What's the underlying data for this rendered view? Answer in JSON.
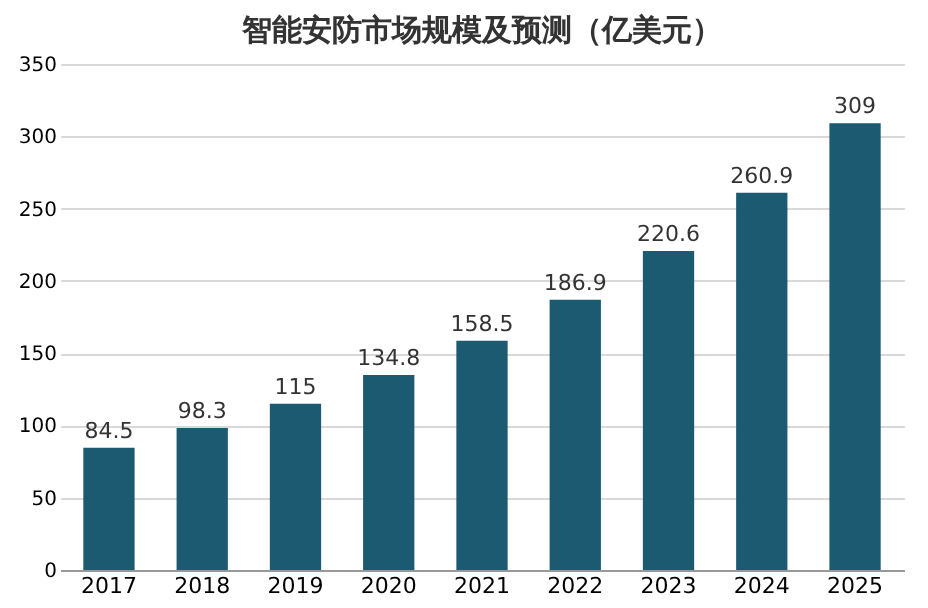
{
  "chart_data": {
    "type": "bar",
    "title": "智能安防市场规模及预测（亿美元）",
    "categories": [
      "2017",
      "2018",
      "2019",
      "2020",
      "2021",
      "2022",
      "2023",
      "2024",
      "2025"
    ],
    "values": [
      84.5,
      98.3,
      115,
      134.8,
      158.5,
      186.9,
      220.6,
      260.9,
      309
    ],
    "color": "#1b5a70",
    "ylim": [
      0,
      350
    ],
    "yticks": [
      0,
      50,
      100,
      150,
      200,
      250,
      300,
      350
    ],
    "grid": "y",
    "data_labels": true
  }
}
